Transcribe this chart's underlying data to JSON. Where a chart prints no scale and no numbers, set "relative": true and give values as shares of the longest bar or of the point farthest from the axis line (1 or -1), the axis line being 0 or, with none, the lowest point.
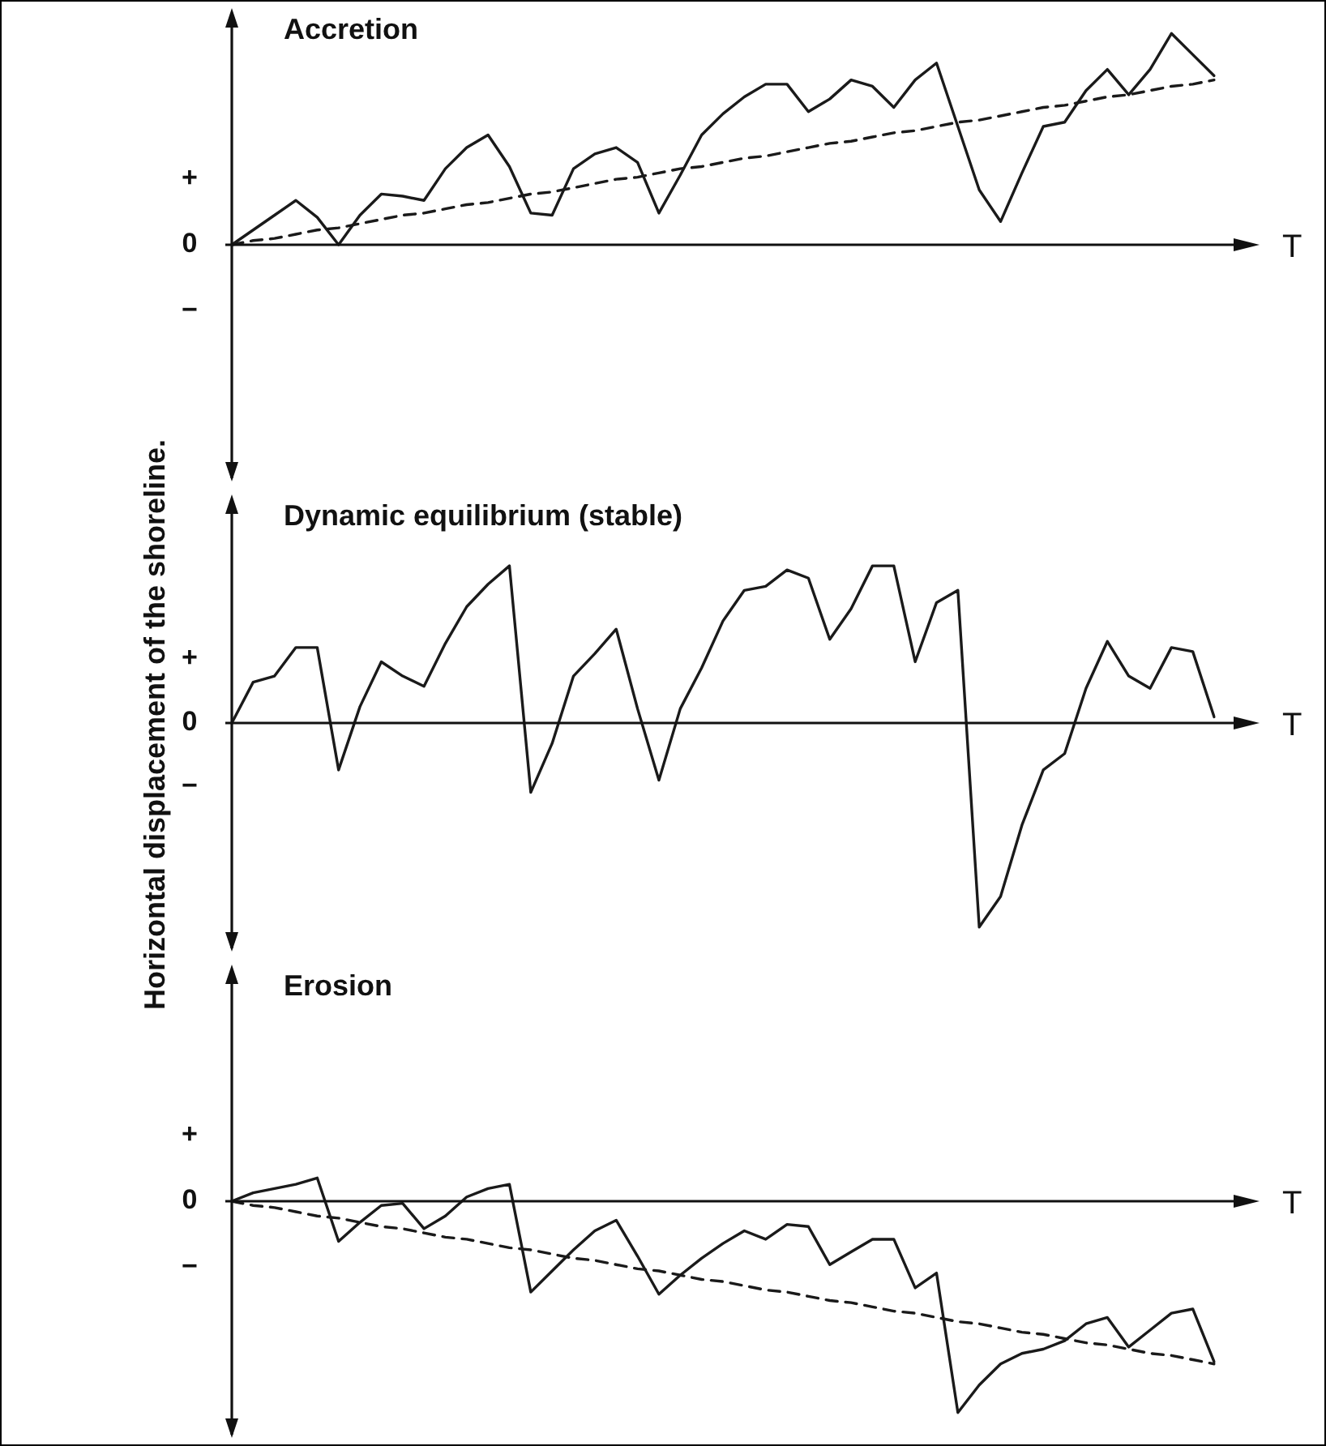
{
  "chart_data": [
    {
      "type": "line",
      "title": "Accretion",
      "xlabel": "T",
      "relative": true,
      "marker": "none",
      "annotations": [
        "+",
        "0",
        "−"
      ],
      "categories": [
        null,
        null,
        null,
        null,
        null,
        null,
        null,
        null,
        null,
        null,
        null,
        null,
        null,
        null,
        null,
        null,
        null,
        null,
        null,
        null,
        null,
        null,
        null,
        null,
        null,
        null,
        null,
        null,
        null,
        null,
        null,
        null,
        null,
        null,
        null,
        null,
        null,
        null,
        null,
        null,
        null,
        null,
        null,
        null,
        null,
        null,
        null
      ],
      "series": [
        {
          "color": "#1a1a1a",
          "line_style": "solid",
          "values": [
            0,
            0.07,
            0.14,
            0.21,
            0.13,
            0,
            0.14,
            0.24,
            0.23,
            0.21,
            0.36,
            0.46,
            0.52,
            0.37,
            0.15,
            0.14,
            0.36,
            0.43,
            0.46,
            0.39,
            0.15,
            0.33,
            0.52,
            0.62,
            0.7,
            0.76,
            0.76,
            0.63,
            0.69,
            0.78,
            0.75,
            0.65,
            0.78,
            0.86,
            0.56,
            0.26,
            0.11,
            0.34,
            0.56,
            0.58,
            0.73,
            0.83,
            0.71,
            0.83,
            1,
            0.9,
            0.8
          ]
        },
        {
          "color": "#1a1a1a",
          "line_style": "dashed",
          "values": [
            0,
            0.02,
            0.03,
            0.05,
            0.07,
            0.08,
            0.1,
            0.12,
            0.14,
            0.15,
            0.17,
            0.19,
            0.2,
            0.22,
            0.24,
            0.25,
            0.27,
            0.29,
            0.31,
            0.32,
            0.34,
            0.36,
            0.37,
            0.39,
            0.41,
            0.42,
            0.44,
            0.46,
            0.48,
            0.49,
            0.51,
            0.53,
            0.54,
            0.56,
            0.58,
            0.59,
            0.61,
            0.63,
            0.65,
            0.66,
            0.68,
            0.7,
            0.71,
            0.73,
            0.75,
            0.76,
            0.78
          ]
        }
      ]
    },
    {
      "type": "line",
      "title": "Dynamic equilibrium (stable)",
      "xlabel": "T",
      "ylabel": "Horizontal displacement of the shoreline.",
      "relative": true,
      "marker": "none",
      "annotations": [
        "+",
        "0",
        "−"
      ],
      "categories": [
        null,
        null,
        null,
        null,
        null,
        null,
        null,
        null,
        null,
        null,
        null,
        null,
        null,
        null,
        null,
        null,
        null,
        null,
        null,
        null,
        null,
        null,
        null,
        null,
        null,
        null,
        null,
        null,
        null,
        null,
        null,
        null,
        null,
        null,
        null,
        null,
        null,
        null,
        null,
        null,
        null,
        null,
        null,
        null,
        null,
        null,
        null
      ],
      "series": [
        {
          "color": "#1a1a1a",
          "line_style": "solid",
          "values": [
            0,
            0.2,
            0.23,
            0.37,
            0.37,
            -0.23,
            0.08,
            0.3,
            0.23,
            0.18,
            0.39,
            0.57,
            0.68,
            0.77,
            -0.34,
            -0.1,
            0.23,
            0.34,
            0.46,
            0.07,
            -0.28,
            0.07,
            0.27,
            0.5,
            0.65,
            0.67,
            0.75,
            0.71,
            0.41,
            0.56,
            0.77,
            0.77,
            0.3,
            0.59,
            0.65,
            -1,
            -0.85,
            -0.5,
            -0.23,
            -0.15,
            0.17,
            0.4,
            0.23,
            0.17,
            0.37,
            0.35,
            0.03
          ]
        }
      ]
    },
    {
      "type": "line",
      "title": "Erosion",
      "xlabel": "T",
      "relative": true,
      "marker": "none",
      "annotations": [
        "+",
        "0",
        "−"
      ],
      "categories": [
        null,
        null,
        null,
        null,
        null,
        null,
        null,
        null,
        null,
        null,
        null,
        null,
        null,
        null,
        null,
        null,
        null,
        null,
        null,
        null,
        null,
        null,
        null,
        null,
        null,
        null,
        null,
        null,
        null,
        null,
        null,
        null,
        null,
        null,
        null,
        null,
        null,
        null,
        null,
        null,
        null,
        null,
        null,
        null,
        null,
        null,
        null
      ],
      "series": [
        {
          "color": "#1a1a1a",
          "line_style": "solid",
          "values": [
            0,
            0.04,
            0.06,
            0.08,
            0.11,
            -0.19,
            -0.1,
            -0.02,
            -0.01,
            -0.13,
            -0.07,
            0.02,
            0.06,
            0.08,
            -0.43,
            -0.33,
            -0.23,
            -0.14,
            -0.09,
            -0.26,
            -0.44,
            -0.35,
            -0.27,
            -0.2,
            -0.14,
            -0.18,
            -0.11,
            -0.12,
            -0.3,
            -0.24,
            -0.18,
            -0.18,
            -0.41,
            -0.34,
            -1,
            -0.87,
            -0.77,
            -0.72,
            -0.7,
            -0.66,
            -0.58,
            -0.55,
            -0.69,
            -0.61,
            -0.53,
            -0.51,
            -0.76
          ]
        },
        {
          "color": "#1a1a1a",
          "line_style": "dashed",
          "values": [
            0,
            -0.02,
            -0.03,
            -0.05,
            -0.07,
            -0.08,
            -0.1,
            -0.12,
            -0.13,
            -0.15,
            -0.17,
            -0.18,
            -0.2,
            -0.22,
            -0.23,
            -0.25,
            -0.27,
            -0.28,
            -0.3,
            -0.32,
            -0.33,
            -0.35,
            -0.37,
            -0.38,
            -0.4,
            -0.42,
            -0.43,
            -0.45,
            -0.47,
            -0.48,
            -0.5,
            -0.52,
            -0.53,
            -0.55,
            -0.57,
            -0.58,
            -0.6,
            -0.62,
            -0.63,
            -0.65,
            -0.67,
            -0.68,
            -0.7,
            -0.72,
            -0.73,
            -0.75,
            -0.77
          ]
        }
      ]
    }
  ]
}
